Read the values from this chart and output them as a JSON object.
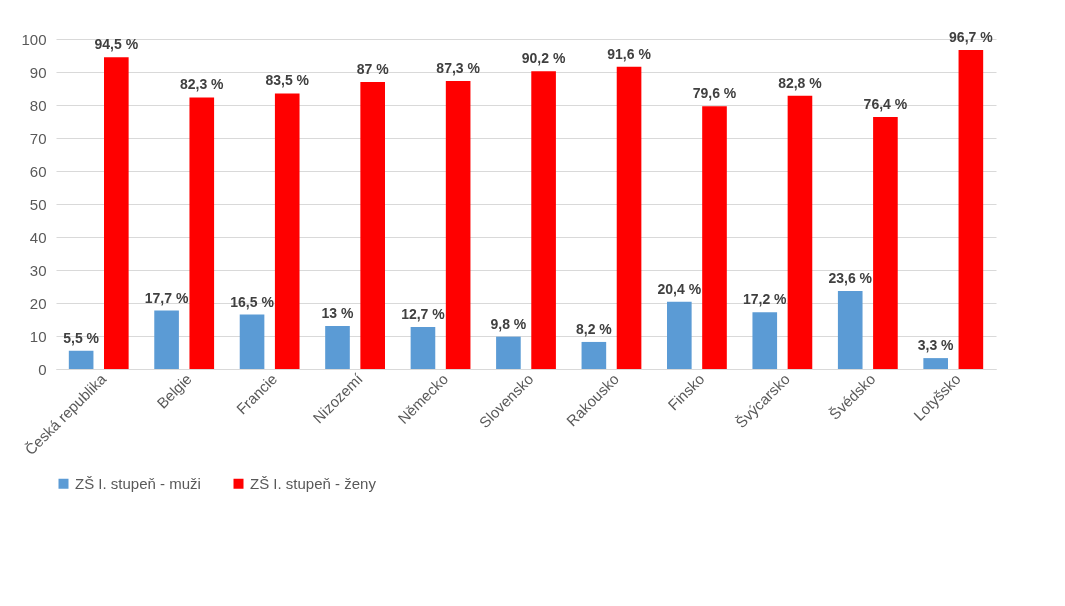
{
  "chart_data": {
    "type": "bar",
    "categories": [
      "Česká republika",
      "Belgie",
      "Francie",
      "Nizozemí",
      "Německo",
      "Slovensko",
      "Rakousko",
      "Finsko",
      "Švýcarsko",
      "Švédsko",
      "Lotyšsko"
    ],
    "series": [
      {
        "name": "ZŠ I. stupeň - muži",
        "color": "#5b9bd5",
        "values": [
          5.5,
          17.7,
          16.5,
          13,
          12.7,
          9.8,
          8.2,
          20.4,
          17.2,
          23.6,
          3.3
        ],
        "value_labels": [
          "5,5 %",
          "17,7 %",
          "16,5 %",
          "13 %",
          "12,7 %",
          "9,8 %",
          "8,2 %",
          "20,4 %",
          "17,2 %",
          "23,6 %",
          "3,3 %"
        ]
      },
      {
        "name": "ZŠ I. stupeň - ženy",
        "color": "#ff0000",
        "values": [
          94.5,
          82.3,
          83.5,
          87,
          87.3,
          90.2,
          91.6,
          79.6,
          82.8,
          76.4,
          96.7
        ],
        "value_labels": [
          "94,5 %",
          "82,3 %",
          "83,5 %",
          "87 %",
          "87,3 %",
          "90,2 %",
          "91,6 %",
          "79,6 %",
          "82,8 %",
          "76,4 %",
          "96,7 %"
        ]
      }
    ],
    "ylim": [
      0,
      100
    ],
    "yticks": [
      0,
      10,
      20,
      30,
      40,
      50,
      60,
      70,
      80,
      90,
      100
    ],
    "grid": "y",
    "legend": "bottom"
  }
}
